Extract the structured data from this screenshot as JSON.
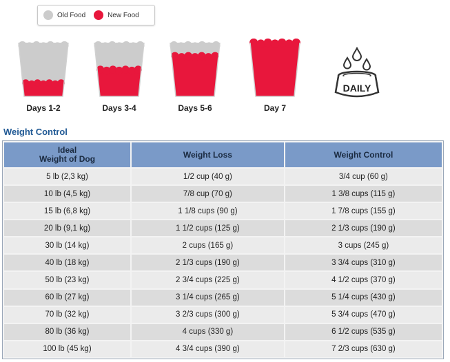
{
  "legend": {
    "items": [
      {
        "label": "Old Food",
        "color": "#cccccc"
      },
      {
        "label": "New Food",
        "color": "#e8173c"
      }
    ]
  },
  "cups": [
    {
      "label": "Days 1-2",
      "new_fraction": 0.25
    },
    {
      "label": "Days 3-4",
      "new_fraction": 0.5
    },
    {
      "label": "Days 5-6",
      "new_fraction": 0.75
    },
    {
      "label": "Day 7",
      "new_fraction": 1.0
    }
  ],
  "daily_icon": {
    "label": "DAILY",
    "icon": "water-bowl-icon"
  },
  "section_title": "Weight Control",
  "table": {
    "headers": [
      "Ideal\nWeight of Dog",
      "Weight Loss",
      "Weight Control"
    ],
    "rows": [
      [
        "5 lb (2,3 kg)",
        "1/2 cup (40 g)",
        "3/4 cup (60 g)"
      ],
      [
        "10 lb (4,5 kg)",
        "7/8 cup (70 g)",
        "1 3/8 cups (115 g)"
      ],
      [
        "15 lb (6,8 kg)",
        "1 1/8 cups (90 g)",
        "1 7/8 cups (155 g)"
      ],
      [
        "20 lb (9,1 kg)",
        "1 1/2 cups (125 g)",
        "2 1/3 cups (190 g)"
      ],
      [
        "30 lb (14 kg)",
        "2 cups (165 g)",
        "3 cups (245 g)"
      ],
      [
        "40 lb (18 kg)",
        "2 1/3 cups (190 g)",
        "3 3/4 cups (310 g)"
      ],
      [
        "50 lb (23 kg)",
        "2 3/4 cups (225 g)",
        "4 1/2 cups (370 g)"
      ],
      [
        "60 lb (27 kg)",
        "3 1/4 cups (265 g)",
        "5 1/4 cups (430 g)"
      ],
      [
        "70 lb (32 kg)",
        "3 2/3 cups (300 g)",
        "5 3/4 cups (470 g)"
      ],
      [
        "80 lb (36 kg)",
        "4 cups (330 g)",
        "6 1/2 cups (535 g)"
      ],
      [
        "100 lb (45 kg)",
        "4 3/4 cups (390 g)",
        "7 2/3 cups (630 g)"
      ]
    ]
  }
}
